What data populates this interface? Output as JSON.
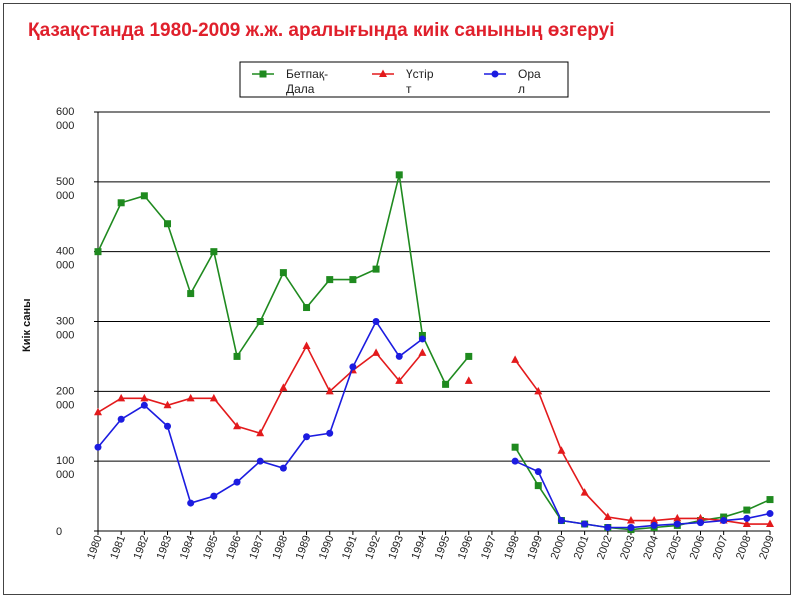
{
  "chart_data": {
    "type": "line",
    "title": "Қазақстанда 1980-2009 ж.ж. аралығында киік санының өзгеруі",
    "ylabel": "Киік саны",
    "xlabel": "",
    "ylim": [
      0,
      600000
    ],
    "ytick_labels": [
      {
        "value": 0,
        "line1": "0",
        "line2": ""
      },
      {
        "value": 100000,
        "line1": "100",
        "line2": "000"
      },
      {
        "value": 200000,
        "line1": "200",
        "line2": "000"
      },
      {
        "value": 300000,
        "line1": "300",
        "line2": "000"
      },
      {
        "value": 400000,
        "line1": "400",
        "line2": "000"
      },
      {
        "value": 500000,
        "line1": "500",
        "line2": "000"
      },
      {
        "value": 600000,
        "line1": "600",
        "line2": "000"
      }
    ],
    "grid": true,
    "legend_position": "top-center",
    "categories": [
      "1980",
      "1981",
      "1982",
      "1983",
      "1984",
      "1985",
      "1986",
      "1987",
      "1988",
      "1989",
      "1990",
      "1991",
      "1992",
      "1993",
      "1994",
      "1995",
      "1996",
      "1997",
      "1998",
      "1999",
      "2000",
      "2001",
      "2002",
      "2003",
      "2004",
      "2005",
      "2006",
      "2007",
      "2008",
      "2009"
    ],
    "series": [
      {
        "name": "Бетпақ-Дала",
        "legend_line1": "Бетпақ-",
        "legend_line2": "Дала",
        "color": "#1f8a1f",
        "marker": "square",
        "values": [
          400000,
          470000,
          480000,
          440000,
          340000,
          400000,
          250000,
          300000,
          370000,
          320000,
          360000,
          360000,
          375000,
          510000,
          280000,
          210000,
          250000,
          null,
          120000,
          65000,
          15000,
          10000,
          5000,
          2000,
          5000,
          8000,
          15000,
          20000,
          30000,
          45000
        ]
      },
      {
        "name": "Үстірт",
        "legend_line1": "Үстір",
        "legend_line2": "т",
        "color": "#e31a1c",
        "marker": "triangle",
        "values": [
          170000,
          190000,
          190000,
          180000,
          190000,
          190000,
          150000,
          140000,
          205000,
          265000,
          200000,
          230000,
          255000,
          215000,
          255000,
          null,
          215000,
          null,
          245000,
          200000,
          115000,
          55000,
          20000,
          15000,
          15000,
          18000,
          18000,
          15000,
          10000,
          10000
        ]
      },
      {
        "name": "Орал",
        "legend_line1": "Ора",
        "legend_line2": "л",
        "color": "#1c1ce0",
        "marker": "circle",
        "values": [
          120000,
          160000,
          180000,
          150000,
          40000,
          50000,
          70000,
          100000,
          90000,
          135000,
          140000,
          235000,
          300000,
          250000,
          275000,
          null,
          null,
          null,
          100000,
          85000,
          15000,
          10000,
          5000,
          5000,
          8000,
          10000,
          12000,
          15000,
          18000,
          25000
        ]
      }
    ]
  }
}
